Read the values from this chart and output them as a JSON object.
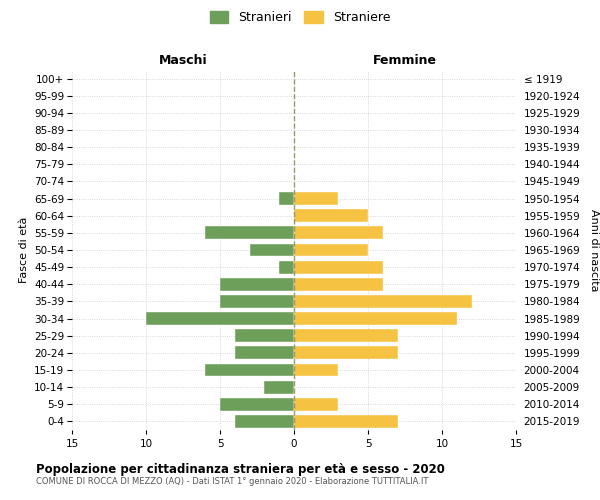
{
  "age_groups": [
    "0-4",
    "5-9",
    "10-14",
    "15-19",
    "20-24",
    "25-29",
    "30-34",
    "35-39",
    "40-44",
    "45-49",
    "50-54",
    "55-59",
    "60-64",
    "65-69",
    "70-74",
    "75-79",
    "80-84",
    "85-89",
    "90-94",
    "95-99",
    "100+"
  ],
  "birth_years": [
    "2015-2019",
    "2010-2014",
    "2005-2009",
    "2000-2004",
    "1995-1999",
    "1990-1994",
    "1985-1989",
    "1980-1984",
    "1975-1979",
    "1970-1974",
    "1965-1969",
    "1960-1964",
    "1955-1959",
    "1950-1954",
    "1945-1949",
    "1940-1944",
    "1935-1939",
    "1930-1934",
    "1925-1929",
    "1920-1924",
    "≤ 1919"
  ],
  "males": [
    4,
    5,
    2,
    6,
    4,
    4,
    10,
    5,
    5,
    1,
    3,
    6,
    0,
    1,
    0,
    0,
    0,
    0,
    0,
    0,
    0
  ],
  "females": [
    7,
    3,
    0,
    3,
    7,
    7,
    11,
    12,
    6,
    6,
    5,
    6,
    5,
    3,
    0,
    0,
    0,
    0,
    0,
    0,
    0
  ],
  "male_color": "#6d9e5a",
  "female_color": "#f5c242",
  "title": "Popolazione per cittadinanza straniera per età e sesso - 2020",
  "subtitle": "COMUNE DI ROCCA DI MEZZO (AQ) - Dati ISTAT 1° gennaio 2020 - Elaborazione TUTTITALIA.IT",
  "xlabel_left": "Maschi",
  "xlabel_right": "Femmine",
  "ylabel_left": "Fasce di età",
  "ylabel_right": "Anni di nascita",
  "legend_male": "Stranieri",
  "legend_female": "Straniere",
  "xlim": 15,
  "background_color": "#ffffff",
  "grid_color": "#cccccc"
}
